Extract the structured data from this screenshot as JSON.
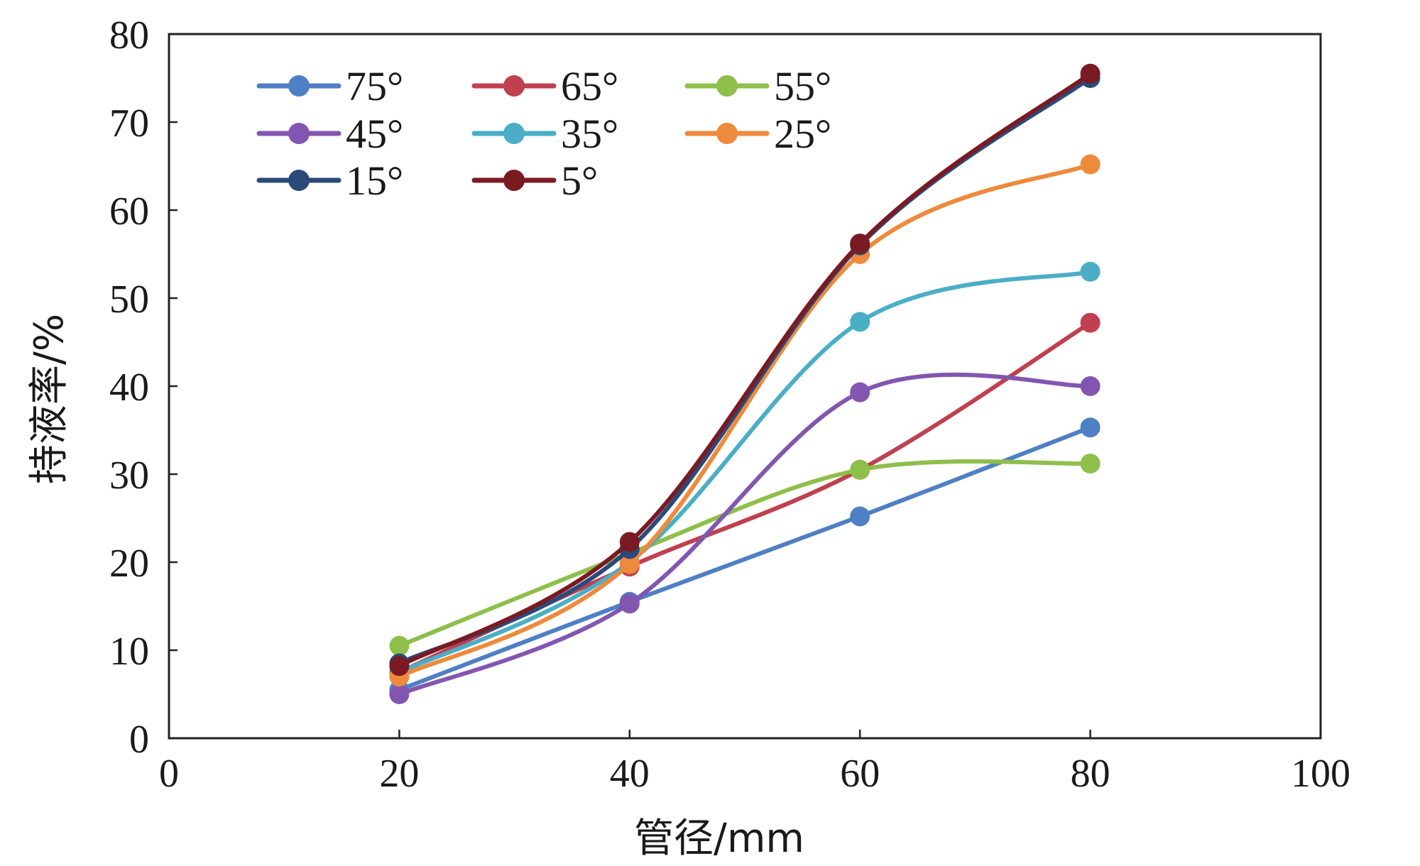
{
  "chart_data": {
    "type": "line",
    "title": "",
    "xlabel": "管径/mm",
    "ylabel": "持液率/%",
    "xlim": [
      0,
      100
    ],
    "ylim": [
      0,
      80
    ],
    "xticks": [
      0,
      20,
      40,
      60,
      80,
      100
    ],
    "yticks": [
      0,
      10,
      20,
      30,
      40,
      50,
      60,
      70,
      80
    ],
    "xtick_labels": [
      "0",
      "20",
      "40",
      "60",
      "80",
      "100"
    ],
    "ytick_labels": [
      "0",
      "10",
      "20",
      "30",
      "40",
      "50",
      "60",
      "70",
      "80"
    ],
    "grid": false,
    "legend_position": "top-left",
    "x": [
      20,
      40,
      60,
      80
    ],
    "series": [
      {
        "name": "75°",
        "color": "#4f7fc4",
        "values": [
          5.5,
          15.5,
          25.2,
          35.3
        ]
      },
      {
        "name": "65°",
        "color": "#c0404f",
        "values": [
          7.5,
          19.5,
          30.5,
          47.2
        ]
      },
      {
        "name": "55°",
        "color": "#8ebf4b",
        "values": [
          10.5,
          21.0,
          30.5,
          31.2
        ]
      },
      {
        "name": "45°",
        "color": "#8256b0",
        "values": [
          5.0,
          15.3,
          39.3,
          40.0
        ]
      },
      {
        "name": "35°",
        "color": "#4aaec6",
        "values": [
          7.5,
          20.0,
          47.3,
          53.0
        ]
      },
      {
        "name": "25°",
        "color": "#ee8a3c",
        "values": [
          7.0,
          19.8,
          55.0,
          65.2
        ]
      },
      {
        "name": "15°",
        "color": "#2b4a7a",
        "values": [
          8.5,
          21.5,
          56.0,
          75.0
        ]
      },
      {
        "name": "5°",
        "color": "#7a1a22",
        "values": [
          8.2,
          22.3,
          56.2,
          75.5
        ]
      }
    ]
  }
}
